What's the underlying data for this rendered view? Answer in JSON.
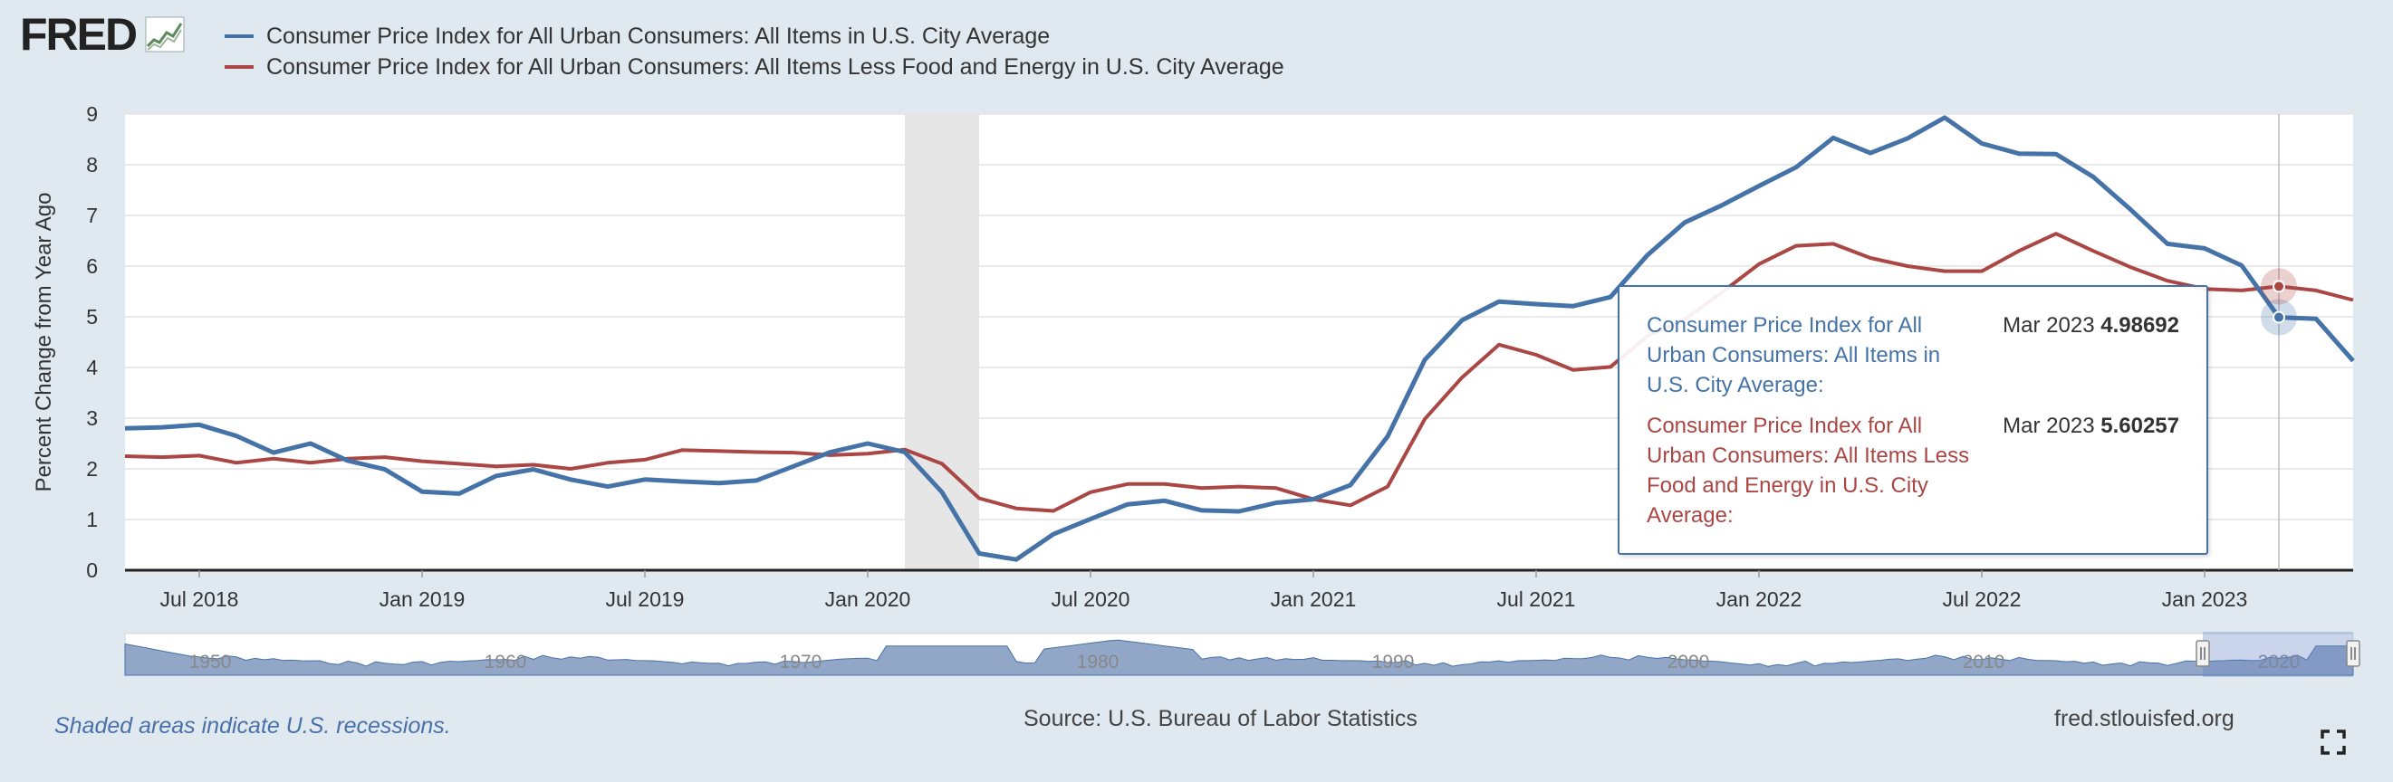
{
  "header": {
    "logo_text": "FRED",
    "logo_icon": "fred-chart-icon"
  },
  "legend": [
    {
      "label": "Consumer Price Index for All Urban Consumers: All Items in U.S. City Average",
      "color": "#4572a7"
    },
    {
      "label": "Consumer Price Index for All Urban Consumers: All Items Less Food and Energy in U.S. City Average",
      "color": "#aa4643"
    }
  ],
  "tooltip": {
    "rows": [
      {
        "name": "Consumer Price Index for All Urban Consumers: All Items in U.S. City Average:",
        "date": "Mar 2023",
        "value": "4.98692",
        "color": "#4572a7"
      },
      {
        "name": "Consumer Price Index for All Urban Consumers: All Items Less Food and Energy in U.S. City Average:",
        "date": "Mar 2023",
        "value": "5.60257",
        "color": "#aa4643"
      }
    ]
  },
  "navigator": {
    "labels": [
      "1950",
      "1960",
      "1970",
      "1980",
      "1990",
      "2000",
      "2010",
      "2020"
    ]
  },
  "footer": {
    "recession_note": "Shaded areas indicate U.S. recessions.",
    "source": "Source: U.S. Bureau of Labor Statistics",
    "site": "fred.stlouisfed.org"
  },
  "chart_data": {
    "type": "line",
    "title": "",
    "xlabel": "",
    "ylabel": "Percent Change from Year Ago",
    "ylim": [
      0,
      9
    ],
    "yticks": [
      "0",
      "1",
      "2",
      "3",
      "4",
      "5",
      "6",
      "7",
      "8",
      "9"
    ],
    "x_start": "2018-05",
    "x_end": "2023-05",
    "x": [
      "2018-05",
      "2018-06",
      "2018-07",
      "2018-08",
      "2018-09",
      "2018-10",
      "2018-11",
      "2018-12",
      "2019-01",
      "2019-02",
      "2019-03",
      "2019-04",
      "2019-05",
      "2019-06",
      "2019-07",
      "2019-08",
      "2019-09",
      "2019-10",
      "2019-11",
      "2019-12",
      "2020-01",
      "2020-02",
      "2020-03",
      "2020-04",
      "2020-05",
      "2020-06",
      "2020-07",
      "2020-08",
      "2020-09",
      "2020-10",
      "2020-11",
      "2020-12",
      "2021-01",
      "2021-02",
      "2021-03",
      "2021-04",
      "2021-05",
      "2021-06",
      "2021-07",
      "2021-08",
      "2021-09",
      "2021-10",
      "2021-11",
      "2021-12",
      "2022-01",
      "2022-02",
      "2022-03",
      "2022-04",
      "2022-05",
      "2022-06",
      "2022-07",
      "2022-08",
      "2022-09",
      "2022-10",
      "2022-11",
      "2022-12",
      "2023-01",
      "2023-02",
      "2023-03",
      "2023-04",
      "2023-05"
    ],
    "xticks": [
      {
        "label": "Jul 2018",
        "date": "2018-07"
      },
      {
        "label": "Jan 2019",
        "date": "2019-01"
      },
      {
        "label": "Jul 2019",
        "date": "2019-07"
      },
      {
        "label": "Jan 2020",
        "date": "2020-01"
      },
      {
        "label": "Jul 2020",
        "date": "2020-07"
      },
      {
        "label": "Jan 2021",
        "date": "2021-01"
      },
      {
        "label": "Jul 2021",
        "date": "2021-07"
      },
      {
        "label": "Jan 2022",
        "date": "2022-01"
      },
      {
        "label": "Jul 2022",
        "date": "2022-07"
      },
      {
        "label": "Jan 2023",
        "date": "2023-01"
      }
    ],
    "recessions": [
      {
        "start": "2020-02",
        "end": "2020-04"
      }
    ],
    "grid": true,
    "series": [
      {
        "name": "Consumer Price Index for All Urban Consumers: All Items in U.S. City Average",
        "color": "#4572a7",
        "values": [
          2.8,
          2.82,
          2.87,
          2.65,
          2.32,
          2.5,
          2.16,
          1.99,
          1.55,
          1.51,
          1.86,
          1.99,
          1.79,
          1.65,
          1.79,
          1.75,
          1.72,
          1.77,
          2.05,
          2.33,
          2.5,
          2.33,
          1.54,
          0.33,
          0.21,
          0.71,
          1.01,
          1.3,
          1.37,
          1.18,
          1.16,
          1.33,
          1.4,
          1.68,
          2.64,
          4.15,
          4.93,
          5.3,
          5.25,
          5.21,
          5.39,
          6.22,
          6.86,
          7.2,
          7.58,
          7.95,
          8.53,
          8.23,
          8.52,
          8.93,
          8.42,
          8.22,
          8.21,
          7.76,
          7.12,
          6.44,
          6.35,
          6.01,
          4.99,
          4.96,
          4.13
        ]
      },
      {
        "name": "Consumer Price Index for All Urban Consumers: All Items Less Food and Energy in U.S. City Average",
        "color": "#aa4643",
        "values": [
          2.25,
          2.23,
          2.26,
          2.12,
          2.2,
          2.12,
          2.2,
          2.23,
          2.15,
          2.1,
          2.05,
          2.08,
          2.0,
          2.12,
          2.18,
          2.37,
          2.35,
          2.33,
          2.32,
          2.27,
          2.3,
          2.38,
          2.1,
          1.42,
          1.22,
          1.17,
          1.54,
          1.7,
          1.7,
          1.62,
          1.65,
          1.62,
          1.4,
          1.28,
          1.65,
          2.98,
          3.8,
          4.45,
          4.25,
          3.95,
          4.01,
          4.62,
          4.95,
          5.48,
          6.04,
          6.4,
          6.44,
          6.16,
          6.0,
          5.9,
          5.9,
          6.3,
          6.64,
          6.3,
          5.98,
          5.71,
          5.55,
          5.52,
          5.6,
          5.52,
          5.33
        ]
      }
    ],
    "hover_date": "2023-03",
    "hover_label": "Mar 2023"
  }
}
